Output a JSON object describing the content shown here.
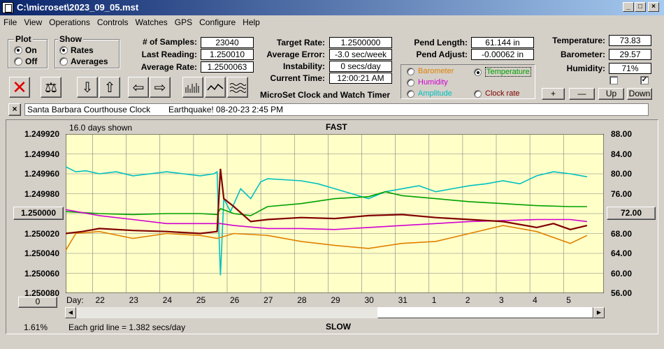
{
  "window": {
    "title": "C:\\microset\\2023_09_05.mst"
  },
  "menu": [
    "File",
    "View",
    "Operations",
    "Controls",
    "Watches",
    "GPS",
    "Configure",
    "Help"
  ],
  "plot_group": {
    "title": "Plot",
    "on": "On",
    "off": "Off",
    "selected": "On"
  },
  "show_group": {
    "title": "Show",
    "rates": "Rates",
    "averages": "Averages",
    "selected": "Rates"
  },
  "stats": {
    "samples_label": "# of Samples:",
    "samples": "23040",
    "last_label": "Last Reading:",
    "last": "1.250010",
    "avg_label": "Average Rate:",
    "avg": "1.2500063",
    "target_label": "Target Rate:",
    "target": "1.2500000",
    "avgerr_label": "Average Error:",
    "avgerr": "-3.0 sec/week",
    "instab_label": "Instability:",
    "instab": "0 secs/day",
    "time_label": "Current Time:",
    "time": "12:00:21 AM",
    "pendlen_label": "Pend Length:",
    "pendlen": "61.144 in",
    "pendadj_label": "Pend Adjust:",
    "pendadj": "-0.00062 in",
    "temp_label": "Temperature:",
    "temp": "73.83",
    "baro_label": "Barometer:",
    "baro": "29.57",
    "hum_label": "Humidity:",
    "hum": "71%"
  },
  "app_title": "MicroSet Clock and Watch Timer",
  "sensors": {
    "barometer": "Barometer",
    "temperature": "Temperature",
    "humidity": "Humidity",
    "amplitude": "Amplitude",
    "clockrate": "Clock rate",
    "selected": "Temperature"
  },
  "sensor_colors": {
    "barometer": "#e08000",
    "temperature": "#00a000",
    "humidity": "#d000d0",
    "amplitude": "#00c0c0",
    "clockrate": "#800000"
  },
  "adjust_buttons": {
    "plus": "+",
    "minus": "—",
    "up": "Up",
    "down": "Down"
  },
  "clock_bar": {
    "close": "×",
    "clock_name": "Santa Barbara Courthouse Clock",
    "note": "Earthquake! 08-20-23 2:45 PM"
  },
  "chart_data": {
    "type": "line",
    "top_label": "FAST",
    "bottom_label": "SLOW",
    "days_shown": "16.0 days shown",
    "grid_note": "Each grid line = 1.382 secs/day",
    "left_center_button": "1.250000",
    "right_center_button": "72.00",
    "bottom_left_button": "0",
    "percent": "1.61%",
    "day_label": "Day:",
    "days": [
      "22",
      "23",
      "24",
      "25",
      "26",
      "27",
      "28",
      "29",
      "30",
      "31",
      "1",
      "2",
      "3",
      "4",
      "5"
    ],
    "y_left_ticks": [
      "1.249920",
      "1.249940",
      "1.249960",
      "1.249980",
      "1.250000",
      "1.250020",
      "1.250040",
      "1.250060",
      "1.250080"
    ],
    "y_right_ticks": [
      "88.00",
      "84.00",
      "80.00",
      "76.00",
      "72.00",
      "68.00",
      "64.00",
      "60.00",
      "56.00"
    ],
    "y_left_range": [
      1.24992,
      1.25008
    ],
    "x_range": [
      0,
      16
    ],
    "grid": true,
    "series": [
      {
        "name": "Amplitude",
        "color": "#00c0c0",
        "x": [
          0,
          0.3,
          0.6,
          1,
          1.5,
          2,
          2.5,
          3,
          3.5,
          4,
          4.4,
          4.5,
          4.55,
          4.6,
          4.7,
          4.9,
          5.2,
          5.5,
          5.8,
          6,
          6.5,
          7,
          7.5,
          8,
          8.5,
          9,
          9.5,
          10,
          10.5,
          11,
          11.5,
          12,
          12.5,
          13,
          13.5,
          14,
          14.5,
          15,
          15.5
        ],
        "y": [
          1.249953,
          1.249958,
          1.249957,
          1.24996,
          1.249958,
          1.249962,
          1.24996,
          1.249958,
          1.24996,
          1.249962,
          1.24996,
          1.249958,
          1.250015,
          1.250062,
          1.249985,
          1.249998,
          1.249975,
          1.249985,
          1.249968,
          1.249965,
          1.249966,
          1.249967,
          1.24997,
          1.249975,
          1.24998,
          1.249985,
          1.249978,
          1.249975,
          1.249972,
          1.249978,
          1.249975,
          1.249972,
          1.24997,
          1.249967,
          1.24997,
          1.249962,
          1.249958,
          1.24996,
          1.249963
        ]
      },
      {
        "name": "Temperature",
        "color": "#00a000",
        "x": [
          0,
          1,
          2,
          3,
          4,
          4.5,
          4.6,
          5,
          5.5,
          6,
          7,
          8,
          9,
          9.5,
          10,
          11,
          12,
          13,
          14,
          15,
          15.5
        ],
        "y": [
          1.249998,
          1.25,
          1.250001,
          1.25,
          1.25,
          1.250001,
          1.249995,
          1.25,
          1.250002,
          1.249993,
          1.24999,
          1.249985,
          1.249983,
          1.249978,
          1.249982,
          1.249985,
          1.249988,
          1.24999,
          1.249992,
          1.249993,
          1.249993
        ]
      },
      {
        "name": "Humidity",
        "color": "#d000d0",
        "x": [
          0,
          1,
          2,
          3,
          4,
          4.5,
          4.6,
          5,
          6,
          7,
          8,
          9,
          10,
          11,
          12,
          13,
          14,
          15,
          15.5
        ],
        "y": [
          1.249996,
          1.250002,
          1.250006,
          1.25001,
          1.25001,
          1.25001,
          1.25001,
          1.250012,
          1.250015,
          1.250015,
          1.250016,
          1.250014,
          1.250012,
          1.25001,
          1.250008,
          1.250007,
          1.250006,
          1.250006,
          1.250008
        ]
      },
      {
        "name": "Barometer",
        "color": "#e08000",
        "x": [
          0,
          0.3,
          1,
          2,
          3,
          4,
          4.5,
          5,
          6,
          7,
          8,
          9,
          10,
          11,
          12,
          13,
          14,
          15,
          15.5
        ],
        "y": [
          1.250037,
          1.25002,
          1.250018,
          1.250025,
          1.25002,
          1.250022,
          1.250025,
          1.25002,
          1.250022,
          1.250028,
          1.250032,
          1.250035,
          1.25003,
          1.250028,
          1.25002,
          1.250012,
          1.250018,
          1.25003,
          1.250022
        ]
      },
      {
        "name": "Clock rate",
        "color": "#800000",
        "x": [
          0,
          0.5,
          1,
          2,
          3,
          4,
          4.5,
          4.6,
          4.7,
          5,
          5.5,
          6,
          7,
          8,
          9,
          10,
          11,
          12,
          13,
          14,
          14.5,
          15,
          15.5
        ],
        "y": [
          1.25002,
          1.250018,
          1.250015,
          1.250017,
          1.250018,
          1.25002,
          1.250018,
          1.249955,
          1.249985,
          1.249993,
          1.250008,
          1.250006,
          1.250004,
          1.250005,
          1.250002,
          1.250001,
          1.250004,
          1.250006,
          1.250008,
          1.250014,
          1.25001,
          1.250016,
          1.250012
        ]
      }
    ]
  }
}
